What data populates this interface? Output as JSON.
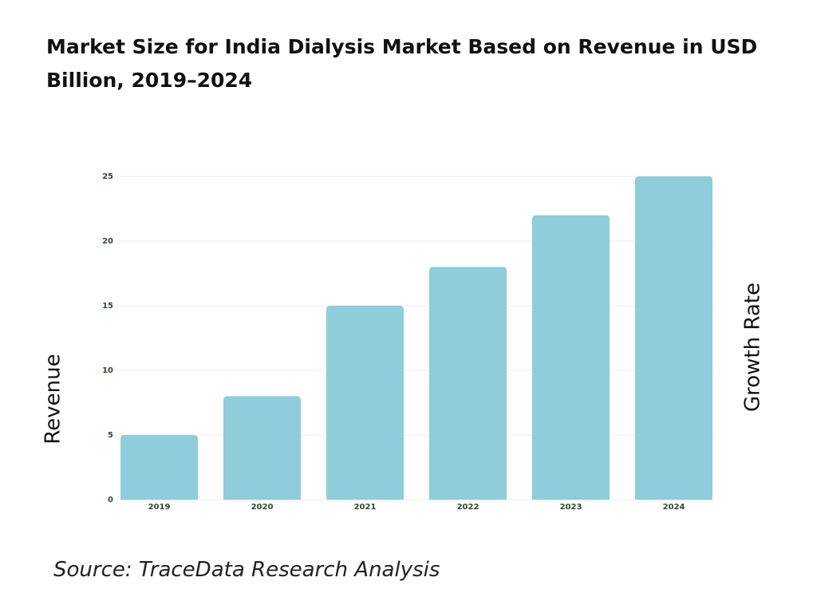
{
  "chart_data": {
    "type": "bar",
    "title": "Market Size for India Dialysis Market Based on Revenue in USD Billion, 2019–2024",
    "y_label": "Revenue",
    "y2_label": "Growth Rate",
    "source": "Source: TraceData Research Analysis",
    "categories": [
      "2019",
      "2020",
      "2021",
      "2022",
      "2023",
      "2024"
    ],
    "values": [
      5,
      8,
      15,
      18,
      22,
      25
    ],
    "color": "#8ecdd9",
    "ylim": [
      0,
      25
    ],
    "yticks": [
      0,
      5,
      10,
      15,
      20,
      25
    ],
    "grid": true
  }
}
